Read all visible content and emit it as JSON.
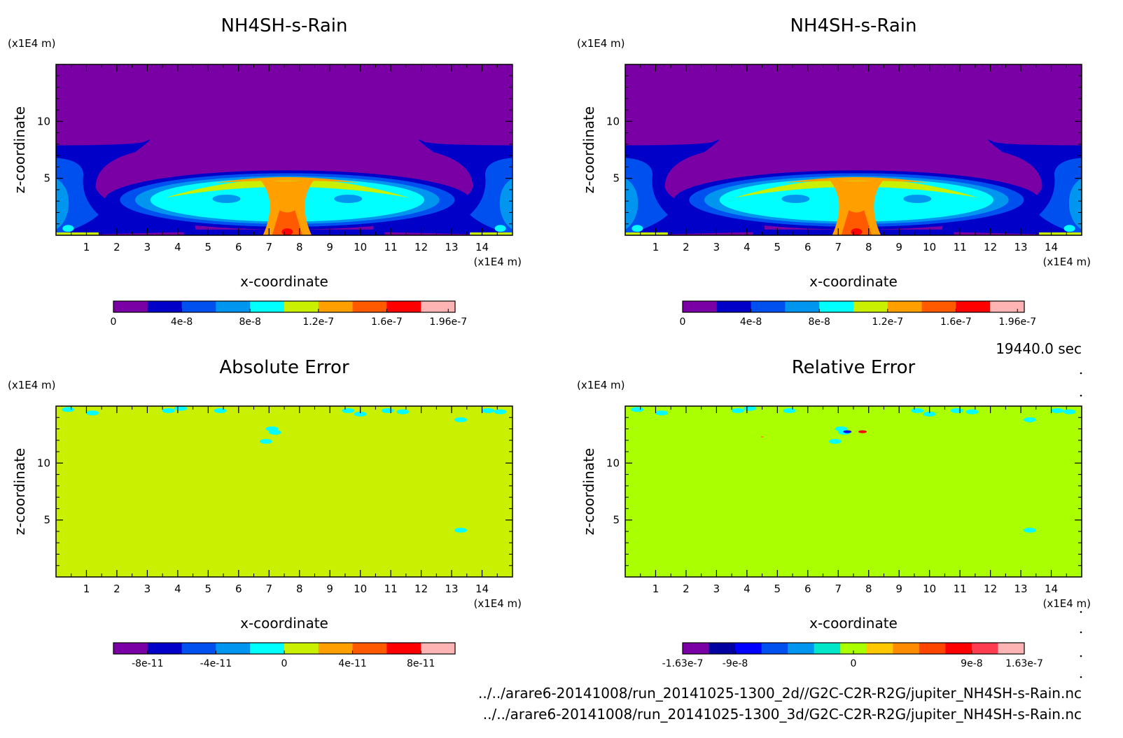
{
  "time_label": "19440.0 sec",
  "files": [
    "../../arare6-20141008/run_20141025-1300_2d//G2C-C2R-R2G/jupiter_NH4SH-s-Rain.nc",
    "../../arare6-20141008/run_20141025-1300_3d/G2C-C2R-R2G/jupiter_NH4SH-s-Rain.nc"
  ],
  "chart_data": [
    {
      "type": "heatmap",
      "title": "NH4SH-s-Rain",
      "xlabel": "x-coordinate",
      "ylabel": "z-coordinate",
      "x_unit": "(x1E4 m)",
      "y_unit": "(x1E4 m)",
      "xlim": [
        0,
        15
      ],
      "ylim": [
        0,
        15
      ],
      "x_ticks": [
        "1",
        "2",
        "3",
        "4",
        "5",
        "6",
        "7",
        "8",
        "9",
        "10",
        "11",
        "12",
        "13",
        "14"
      ],
      "y_ticks": [
        "5",
        "10"
      ],
      "colorbar": {
        "colors": [
          "#7a00a6",
          "#0000c8",
          "#0050f0",
          "#0096f0",
          "#00ffff",
          "#c8f000",
          "#ffa000",
          "#ff5a00",
          "#ff0000",
          "#ffb4b4"
        ],
        "tick_labels": [
          "0",
          "4e-8",
          "8e-8",
          "1.2e-7",
          "1.6e-7",
          "1.96e-7"
        ]
      },
      "field": "plume"
    },
    {
      "type": "heatmap",
      "title": "NH4SH-s-Rain",
      "xlabel": "x-coordinate",
      "ylabel": "z-coordinate",
      "x_unit": "(x1E4 m)",
      "y_unit": "(x1E4 m)",
      "xlim": [
        0,
        15
      ],
      "ylim": [
        0,
        15
      ],
      "x_ticks": [
        "1",
        "2",
        "3",
        "4",
        "5",
        "6",
        "7",
        "8",
        "9",
        "10",
        "11",
        "12",
        "13",
        "14"
      ],
      "y_ticks": [
        "5",
        "10"
      ],
      "colorbar": {
        "colors": [
          "#7a00a6",
          "#0000c8",
          "#0050f0",
          "#0096f0",
          "#00ffff",
          "#c8f000",
          "#ffa000",
          "#ff5a00",
          "#ff0000",
          "#ffb4b4"
        ],
        "tick_labels": [
          "0",
          "4e-8",
          "8e-8",
          "1.2e-7",
          "1.6e-7",
          "1.96e-7"
        ]
      },
      "field": "plume"
    },
    {
      "type": "heatmap",
      "title": "Absolute Error",
      "xlabel": "x-coordinate",
      "ylabel": "z-coordinate",
      "x_unit": "(x1E4 m)",
      "y_unit": "(x1E4 m)",
      "xlim": [
        0,
        15
      ],
      "ylim": [
        0,
        15
      ],
      "x_ticks": [
        "1",
        "2",
        "3",
        "4",
        "5",
        "6",
        "7",
        "8",
        "9",
        "10",
        "11",
        "12",
        "13",
        "14"
      ],
      "y_ticks": [
        "5",
        "10"
      ],
      "background_color": "#c8f000",
      "colorbar": {
        "colors": [
          "#7a00a6",
          "#0000c8",
          "#0050f0",
          "#0096f0",
          "#00ffff",
          "#c8f000",
          "#ffa000",
          "#ff5a00",
          "#ff0000",
          "#ffb4b4"
        ],
        "tick_labels": [
          "-8e-11",
          "-4e-11",
          "0",
          "4e-11",
          "8e-11"
        ]
      },
      "field": "error"
    },
    {
      "type": "heatmap",
      "title": "Relative Error",
      "xlabel": "x-coordinate",
      "ylabel": "z-coordinate",
      "x_unit": "(x1E4 m)",
      "y_unit": "(x1E4 m)",
      "xlim": [
        0,
        15
      ],
      "ylim": [
        0,
        15
      ],
      "x_ticks": [
        "1",
        "2",
        "3",
        "4",
        "5",
        "6",
        "7",
        "8",
        "9",
        "10",
        "11",
        "12",
        "13",
        "14"
      ],
      "y_ticks": [
        "5",
        "10"
      ],
      "background_color": "#aaff00",
      "colorbar": {
        "colors": [
          "#7a00a6",
          "#0000a0",
          "#0000ff",
          "#0050f0",
          "#0096f0",
          "#00e6c8",
          "#aaff00",
          "#ffc800",
          "#ff8c00",
          "#ff4600",
          "#ff0000",
          "#ff3c50",
          "#ffb4b4"
        ],
        "tick_labels": [
          "-1.63e-7",
          "-9e-8",
          "0",
          "9e-8",
          "1.63e-7"
        ]
      },
      "field": "error"
    }
  ]
}
